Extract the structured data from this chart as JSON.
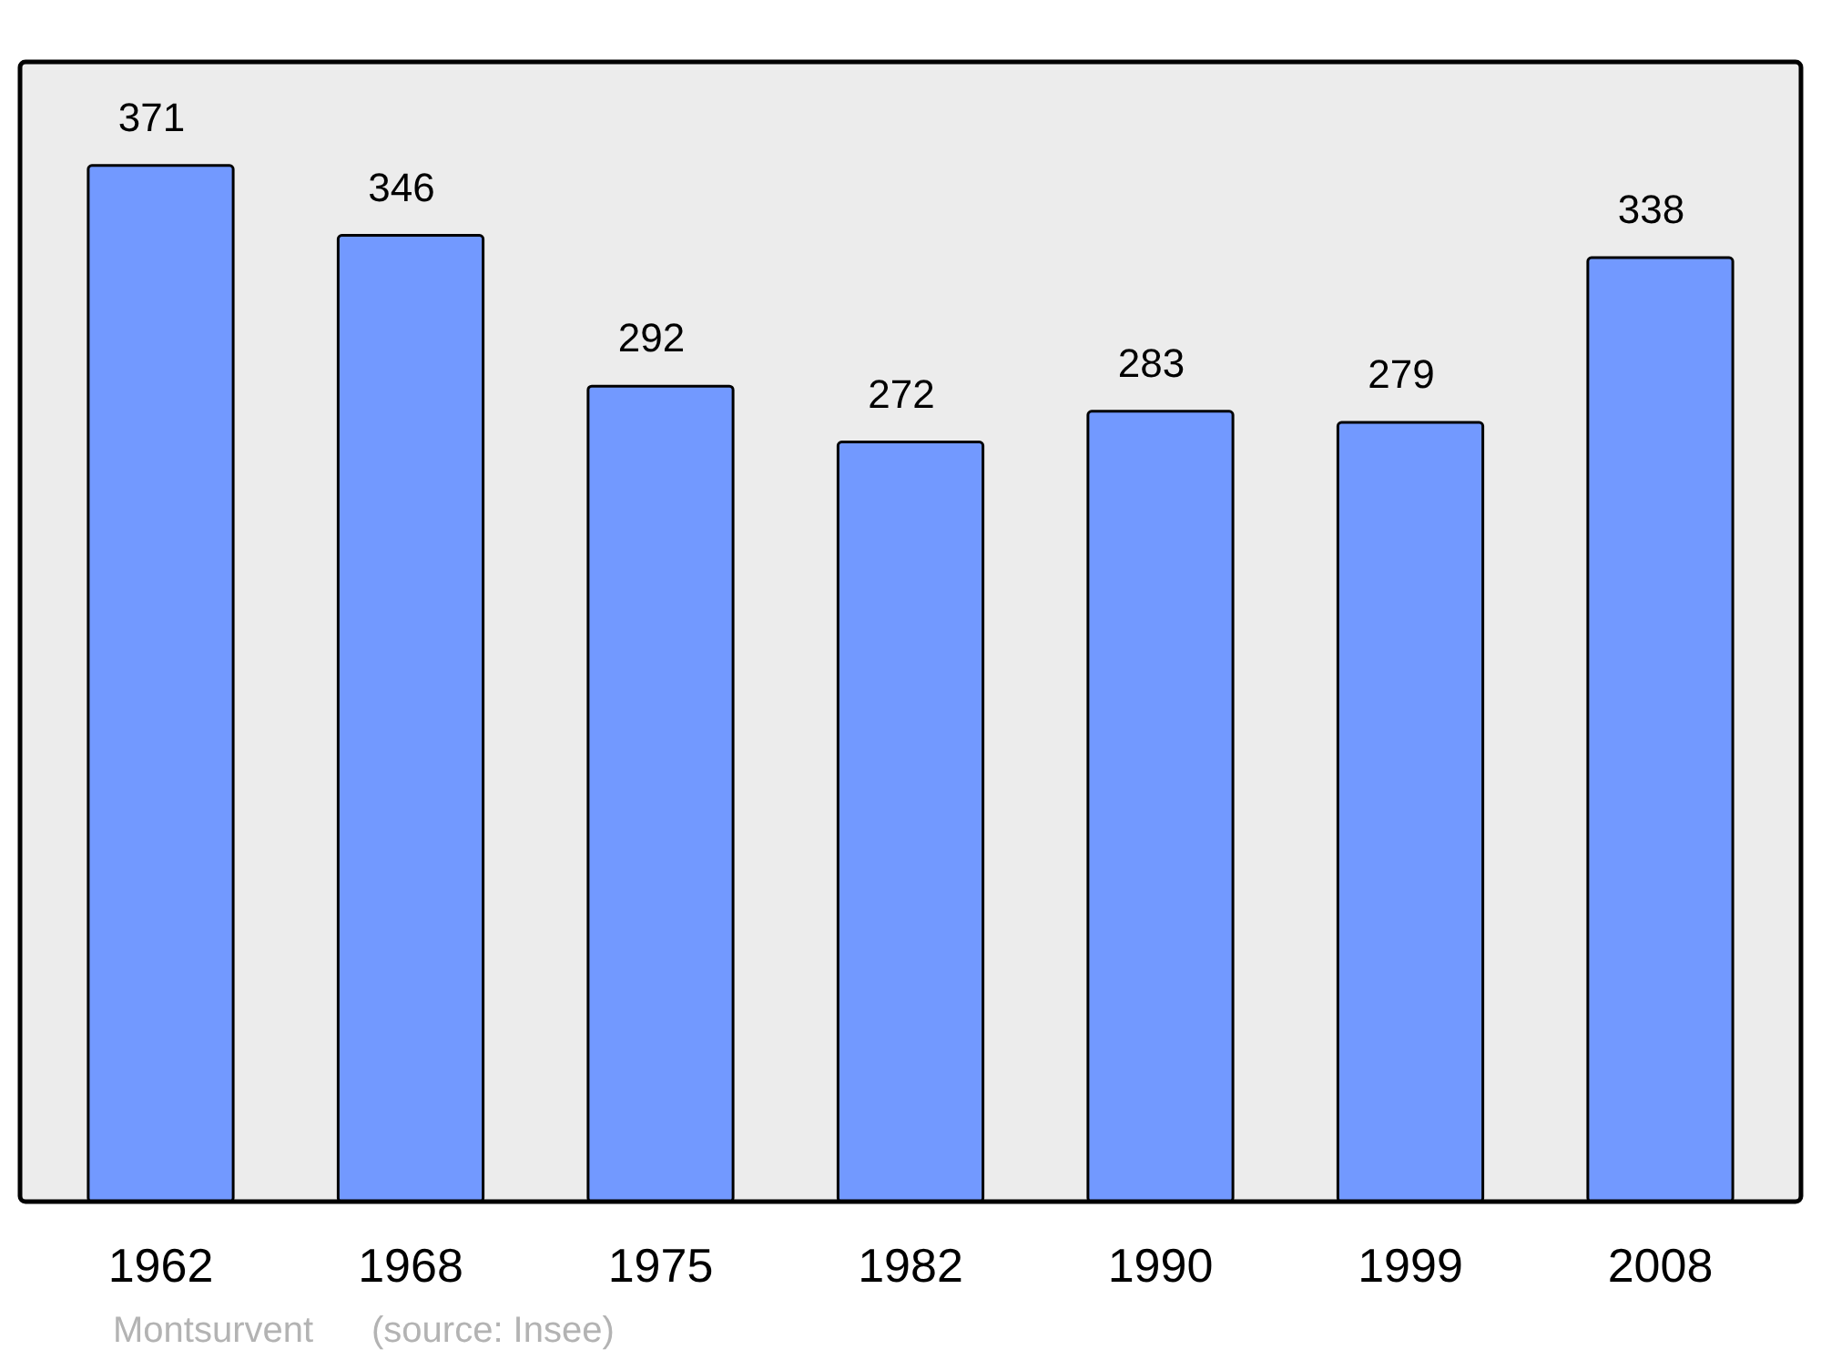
{
  "chart_data": {
    "type": "bar",
    "categories": [
      "1962",
      "1968",
      "1975",
      "1982",
      "1990",
      "1999",
      "2008"
    ],
    "values": [
      371,
      346,
      292,
      272,
      283,
      279,
      338
    ],
    "color": "#7299ff",
    "data_labels": true,
    "annotations": [
      "Montsurvent",
      "(source: Insee)"
    ]
  }
}
